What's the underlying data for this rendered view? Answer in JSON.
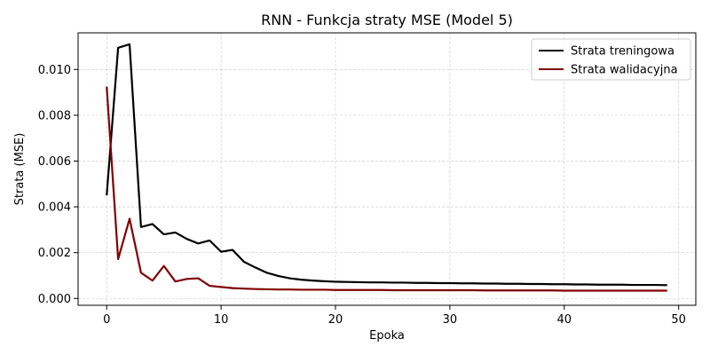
{
  "chart_data": {
    "type": "line",
    "title": "RNN - Funkcja straty MSE (Model 5)",
    "xlabel": "Epoka",
    "ylabel": "Strata (MSE)",
    "xlim": [
      -2.5,
      51.5
    ],
    "ylim": [
      -0.0003,
      0.0116
    ],
    "xticks": [
      0,
      10,
      20,
      30,
      40,
      50
    ],
    "xtick_labels": [
      "0",
      "10",
      "20",
      "30",
      "40",
      "50"
    ],
    "yticks": [
      0,
      0.002,
      0.004,
      0.006,
      0.008,
      0.01
    ],
    "ytick_labels": [
      "0.000",
      "0.002",
      "0.004",
      "0.006",
      "0.008",
      "0.010"
    ],
    "grid": true,
    "legend_position": "top-right",
    "x": [
      0,
      1,
      2,
      3,
      4,
      5,
      6,
      7,
      8,
      9,
      10,
      11,
      12,
      13,
      14,
      15,
      16,
      17,
      18,
      19,
      20,
      21,
      22,
      23,
      24,
      25,
      26,
      27,
      28,
      29,
      30,
      31,
      32,
      33,
      34,
      35,
      36,
      37,
      38,
      39,
      40,
      41,
      42,
      43,
      44,
      45,
      46,
      47,
      48,
      49
    ],
    "series": [
      {
        "name": "Strata treningowa",
        "color": "#000000",
        "values": [
          0.0045,
          0.01095,
          0.0111,
          0.00312,
          0.00325,
          0.0028,
          0.00288,
          0.0026,
          0.0024,
          0.00253,
          0.00204,
          0.00212,
          0.0016,
          0.00135,
          0.00112,
          0.00098,
          0.00088,
          0.00082,
          0.00078,
          0.00075,
          0.00073,
          0.00072,
          0.00071,
          0.0007,
          0.0007,
          0.00069,
          0.00069,
          0.00068,
          0.00068,
          0.00067,
          0.00067,
          0.00066,
          0.00066,
          0.00065,
          0.00065,
          0.00064,
          0.00064,
          0.00063,
          0.00063,
          0.00062,
          0.00062,
          0.00061,
          0.00061,
          0.0006,
          0.0006,
          0.0006,
          0.00059,
          0.00059,
          0.00059,
          0.00058
        ]
      },
      {
        "name": "Strata walidacyjna",
        "color": "#800000",
        "values": [
          0.00925,
          0.00172,
          0.00348,
          0.00112,
          0.00078,
          0.00142,
          0.00074,
          0.00085,
          0.00088,
          0.00055,
          0.0005,
          0.00045,
          0.00043,
          0.00041,
          0.0004,
          0.00039,
          0.00039,
          0.00038,
          0.00038,
          0.00038,
          0.00037,
          0.00037,
          0.00037,
          0.00037,
          0.00037,
          0.00036,
          0.00036,
          0.00036,
          0.00036,
          0.00036,
          0.00036,
          0.00036,
          0.00036,
          0.00035,
          0.00035,
          0.00035,
          0.00035,
          0.00035,
          0.00035,
          0.00035,
          0.00034,
          0.00034,
          0.00034,
          0.00034,
          0.00034,
          0.00034,
          0.00034,
          0.00034,
          0.00034,
          0.00034
        ]
      }
    ]
  }
}
